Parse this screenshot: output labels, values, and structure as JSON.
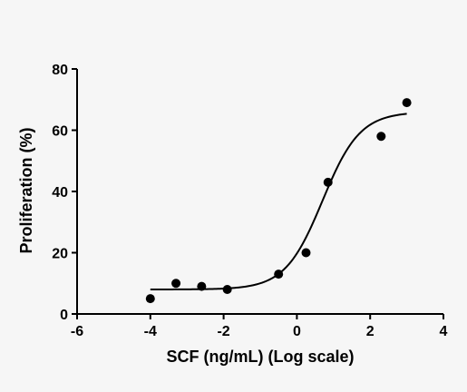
{
  "chart_data": {
    "type": "scatter",
    "title": "",
    "xlabel": "SCF (ng/mL) (Log scale)",
    "ylabel": "Proliferation (%)",
    "xlim": [
      -6,
      4
    ],
    "ylim": [
      0,
      80
    ],
    "x_scale": "log10",
    "x_ticks": [
      -6,
      -4,
      -2,
      0,
      2,
      4
    ],
    "y_ticks": [
      0,
      20,
      40,
      60,
      80
    ],
    "grid": false,
    "legend": "none",
    "series": [
      {
        "x": [
          -4.0,
          -3.3,
          -2.6,
          -1.9,
          -0.5,
          0.25,
          0.85,
          2.3,
          3.0
        ],
        "y": [
          5,
          10,
          9,
          8,
          13,
          20,
          43,
          58,
          69
        ]
      }
    ],
    "fit_curve": {
      "type": "sigmoidal",
      "x_range": [
        -4.0,
        3.0
      ],
      "bottom": 8,
      "top": 66,
      "logEC50": 0.7,
      "hill_slope": 0.85
    },
    "colors": {
      "points": "#000000",
      "line": "#000000",
      "background": "#f6f6f6"
    }
  }
}
